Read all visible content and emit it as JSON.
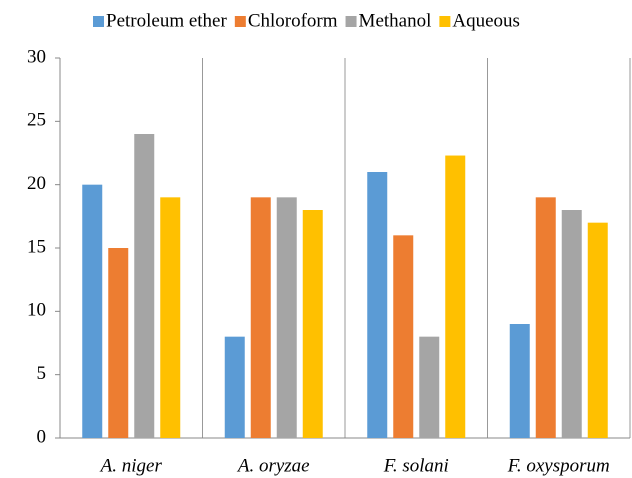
{
  "chart_data": {
    "type": "bar",
    "categories": [
      "A. niger",
      "A. oryzae",
      "F. solani",
      "F. oxysporum"
    ],
    "series": [
      {
        "name": "Petroleum ether",
        "color": "#5b9bd5",
        "values": [
          20,
          8,
          21,
          9
        ]
      },
      {
        "name": "Chloroform",
        "color": "#ed7d31",
        "values": [
          15,
          19,
          16,
          19
        ]
      },
      {
        "name": "Methanol",
        "color": "#a5a5a5",
        "values": [
          24,
          19,
          8,
          18
        ]
      },
      {
        "name": "Aqueous",
        "color": "#ffc000",
        "values": [
          19,
          18,
          22.3,
          17
        ]
      }
    ],
    "ylim": [
      0,
      30
    ],
    "yticks": [
      0,
      5,
      10,
      15,
      20,
      25,
      30
    ],
    "legend": "top"
  }
}
